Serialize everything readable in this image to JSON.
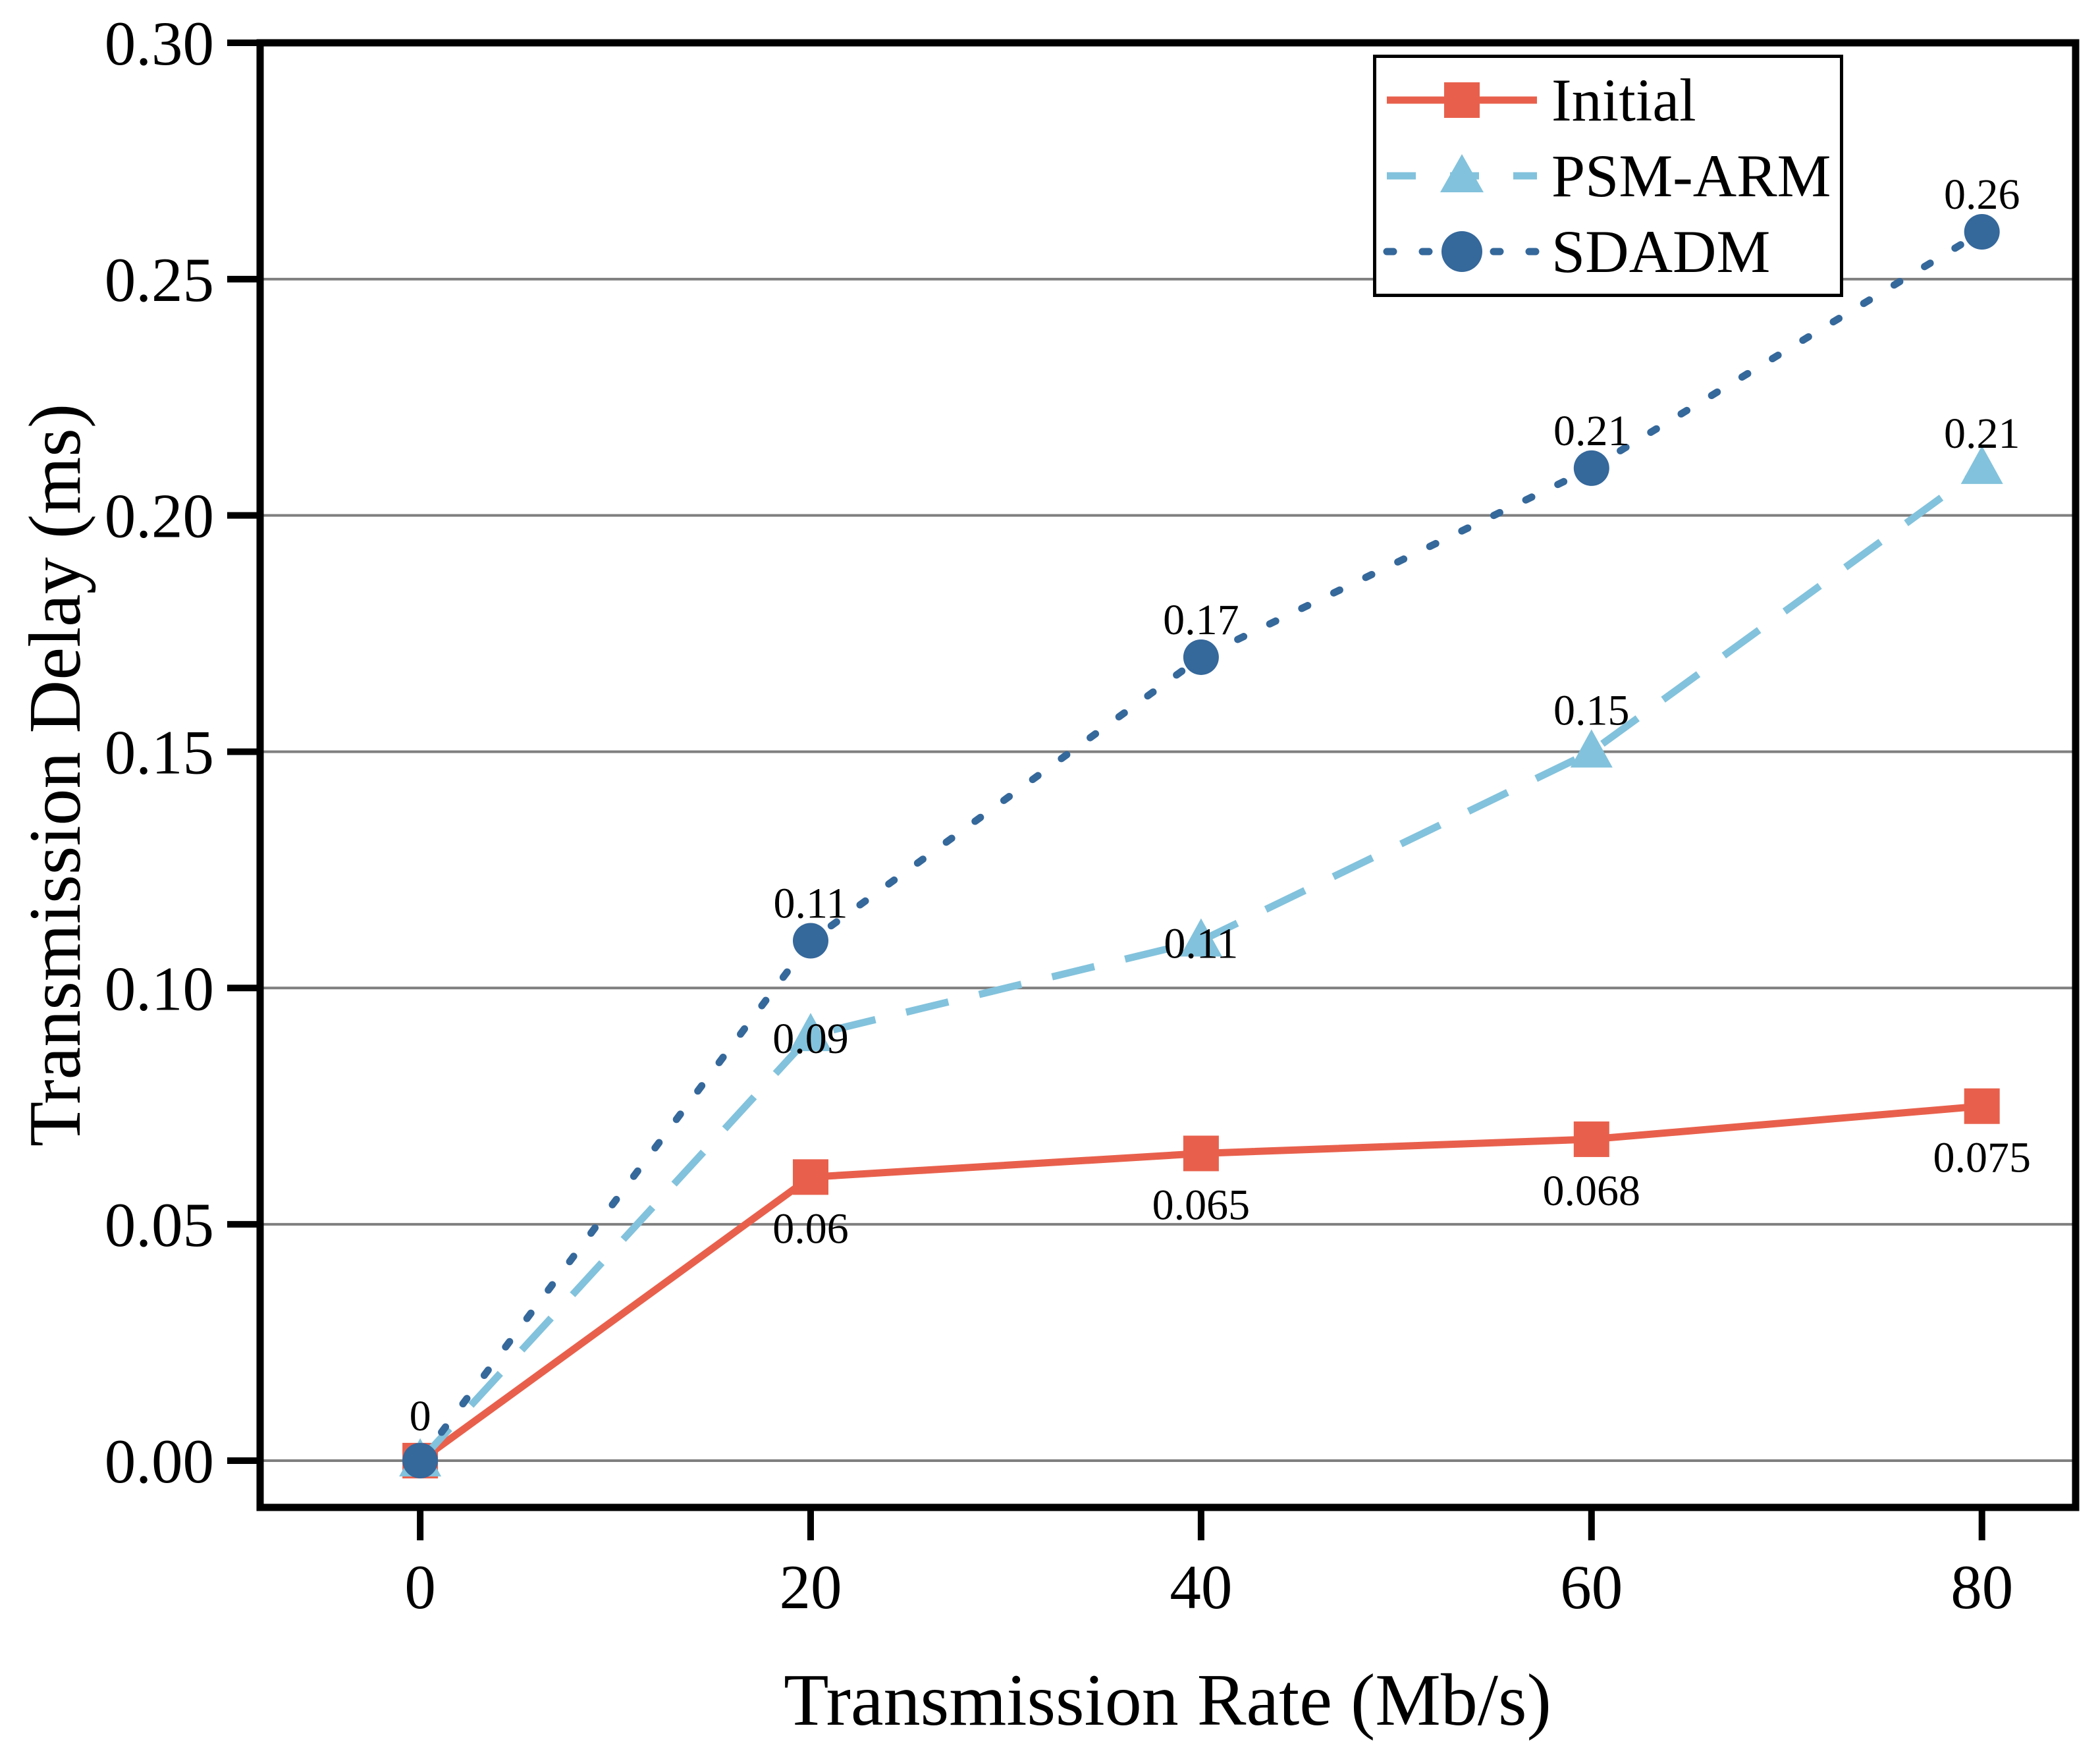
{
  "chart_data": {
    "type": "line",
    "title": "",
    "x": [
      0,
      20,
      40,
      60,
      80
    ],
    "series": [
      {
        "name": "Initial",
        "color": "#E8604C",
        "line_style": "solid",
        "marker": "square",
        "values": [
          0,
          0.06,
          0.065,
          0.068,
          0.075
        ],
        "point_labels": [
          "",
          "0.06",
          "0.065",
          "0.068",
          "0.075"
        ],
        "label_dy": [
          0,
          100,
          100,
          100,
          100
        ]
      },
      {
        "name": "PSM-ARM",
        "color": "#82C2DC",
        "line_style": "dashed",
        "marker": "triangle",
        "values": [
          0,
          0.09,
          0.11,
          0.15,
          0.21
        ],
        "point_labels": [
          "",
          "0.09",
          "0.11",
          "0.15",
          "0.21"
        ],
        "label_dy": [
          0,
          27,
          26,
          -41,
          -31
        ]
      },
      {
        "name": "SDADM",
        "color": "#35689B",
        "line_style": "dotted",
        "marker": "circle",
        "values": [
          0,
          0.11,
          0.17,
          0.21,
          0.26
        ],
        "point_labels": [
          "",
          "0.11",
          "0.17",
          "0.21",
          "0.26"
        ],
        "label_dy": [
          0,
          -35,
          -35,
          -35,
          -35
        ]
      }
    ],
    "origin_label": {
      "text": "0",
      "x": 0,
      "y": 0,
      "dy": -46
    },
    "xlabel": "Transmission Rate (Mb/s)",
    "ylabel": "Transmission Delay (ms)",
    "xticks": [
      0,
      20,
      40,
      60,
      80
    ],
    "yticks": [
      0.0,
      0.05,
      0.1,
      0.15,
      0.2,
      0.25,
      0.3
    ],
    "xlim": [
      -8.2,
      84.8
    ],
    "ylim": [
      -0.0099,
      0.3
    ],
    "grid": "horizontal",
    "grid_color": "#7F7F7F",
    "axis_color": "#000000",
    "background": "#FFFFFF",
    "legend_position": "upper-right"
  }
}
